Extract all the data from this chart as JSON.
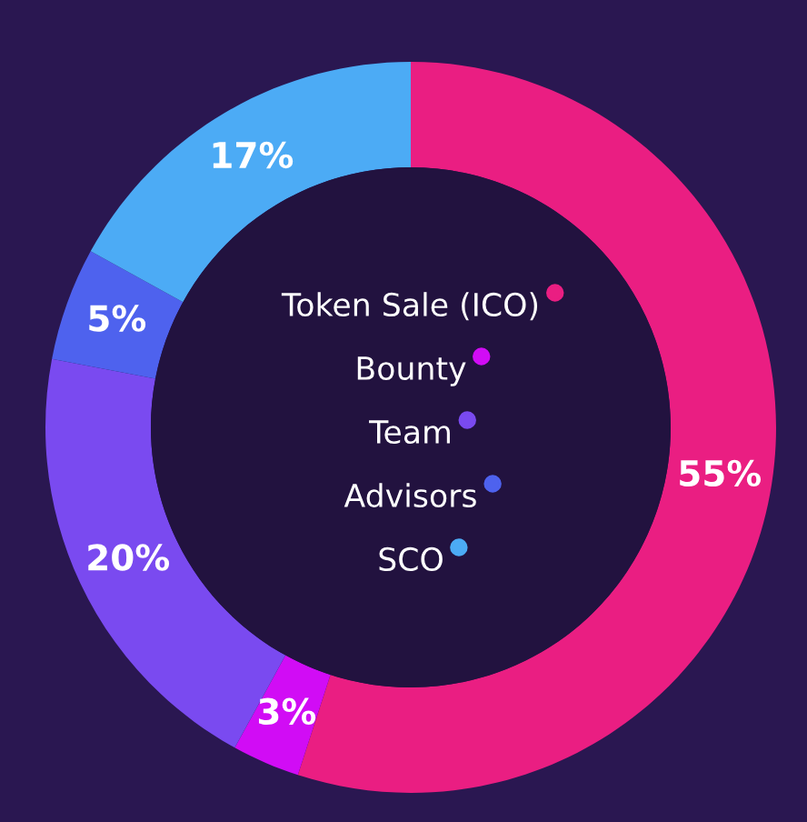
{
  "chart_data": {
    "type": "donut",
    "categories": [
      "Token Sale (ICO)",
      "Bounty",
      "Team",
      "Advisors",
      "SCO"
    ],
    "values": [
      55,
      3,
      20,
      5,
      17
    ],
    "colors": [
      "#ea1e82",
      "#d10cf5",
      "#7a4af0",
      "#4e62ee",
      "#4cabf5"
    ],
    "value_labels": [
      "55%",
      "3%",
      "20%",
      "5%",
      "17%"
    ],
    "legend": "center"
  }
}
